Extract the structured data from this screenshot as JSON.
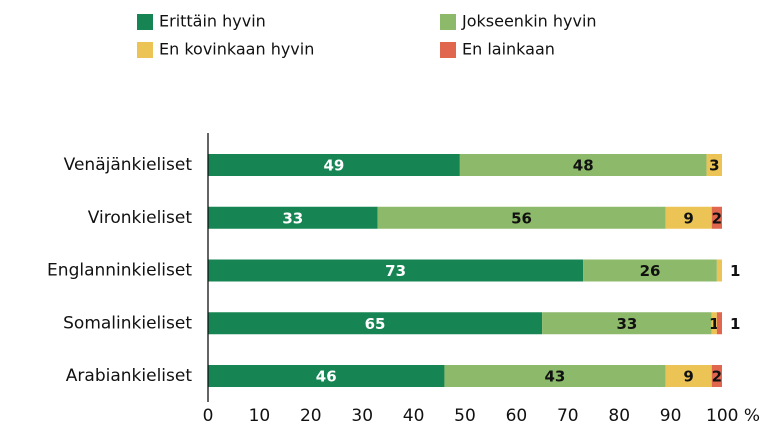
{
  "chart_data": {
    "type": "stacked-bar-horizontal",
    "categories": [
      "Venäjänkieliset",
      "Vironkieliset",
      "Englanninkieliset",
      "Somalinkieliset",
      "Arabiankieliset"
    ],
    "series": [
      {
        "name": "Erittäin hyvin",
        "color": "#178553",
        "values": [
          49,
          33,
          73,
          65,
          46
        ]
      },
      {
        "name": "Jokseenkin hyvin",
        "color": "#8cb96a",
        "values": [
          48,
          56,
          26,
          33,
          43
        ]
      },
      {
        "name": "En kovinkaan hyvin",
        "color": "#ecc455",
        "values": [
          3,
          9,
          1,
          1,
          9
        ]
      },
      {
        "name": "En lainkaan",
        "color": "#e0674e",
        "values": [
          null,
          2,
          null,
          1,
          2
        ]
      }
    ],
    "xlim": [
      0,
      100
    ],
    "xticks": [
      0,
      10,
      20,
      30,
      40,
      50,
      60,
      70,
      80,
      90,
      {
        "value": 100,
        "label": "100 %"
      }
    ]
  }
}
